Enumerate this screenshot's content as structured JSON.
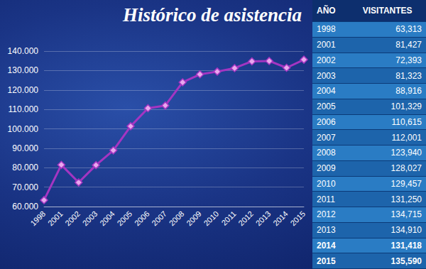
{
  "chart_data": {
    "type": "line",
    "title": "Histórico de asistencia",
    "categories": [
      "1998",
      "2001",
      "2002",
      "2003",
      "2004",
      "2005",
      "2006",
      "2007",
      "2008",
      "2009",
      "2010",
      "2011",
      "2012",
      "2013",
      "2014",
      "2015"
    ],
    "values": [
      63313,
      81427,
      72393,
      81323,
      88916,
      101329,
      110615,
      112001,
      123940,
      128027,
      129457,
      131250,
      134715,
      134910,
      131418,
      135590
    ],
    "color": "#a435c2",
    "marker": "diamond",
    "line_style": "solid",
    "ylim": [
      60000,
      140000
    ],
    "yticks": [
      {
        "value": 60000,
        "label": "60.000"
      },
      {
        "value": 70000,
        "label": "70.000"
      },
      {
        "value": 80000,
        "label": "80.000"
      },
      {
        "value": 90000,
        "label": "90.000"
      },
      {
        "value": 100000,
        "label": "100.000"
      },
      {
        "value": 110000,
        "label": "110.000"
      },
      {
        "value": 120000,
        "label": "120.000"
      },
      {
        "value": 130000,
        "label": "130.000"
      },
      {
        "value": 140000,
        "label": "140.000"
      }
    ],
    "grid": true
  },
  "table": {
    "header": [
      "AÑO",
      "VISITANTES"
    ],
    "rows": [
      [
        "1998",
        "63,313"
      ],
      [
        "2001",
        "81,427"
      ],
      [
        "2002",
        "72,393"
      ],
      [
        "2003",
        "81,323"
      ],
      [
        "2004",
        "88,916"
      ],
      [
        "2005",
        "101,329"
      ],
      [
        "2006",
        "110,615"
      ],
      [
        "2007",
        "112,001"
      ],
      [
        "2008",
        "123,940"
      ],
      [
        "2009",
        "128,027"
      ],
      [
        "2010",
        "129,457"
      ],
      [
        "2011",
        "131,250"
      ],
      [
        "2012",
        "134,715"
      ],
      [
        "2013",
        "134,910"
      ],
      [
        "2014",
        "131,418"
      ],
      [
        "2015",
        "135,590"
      ]
    ]
  }
}
